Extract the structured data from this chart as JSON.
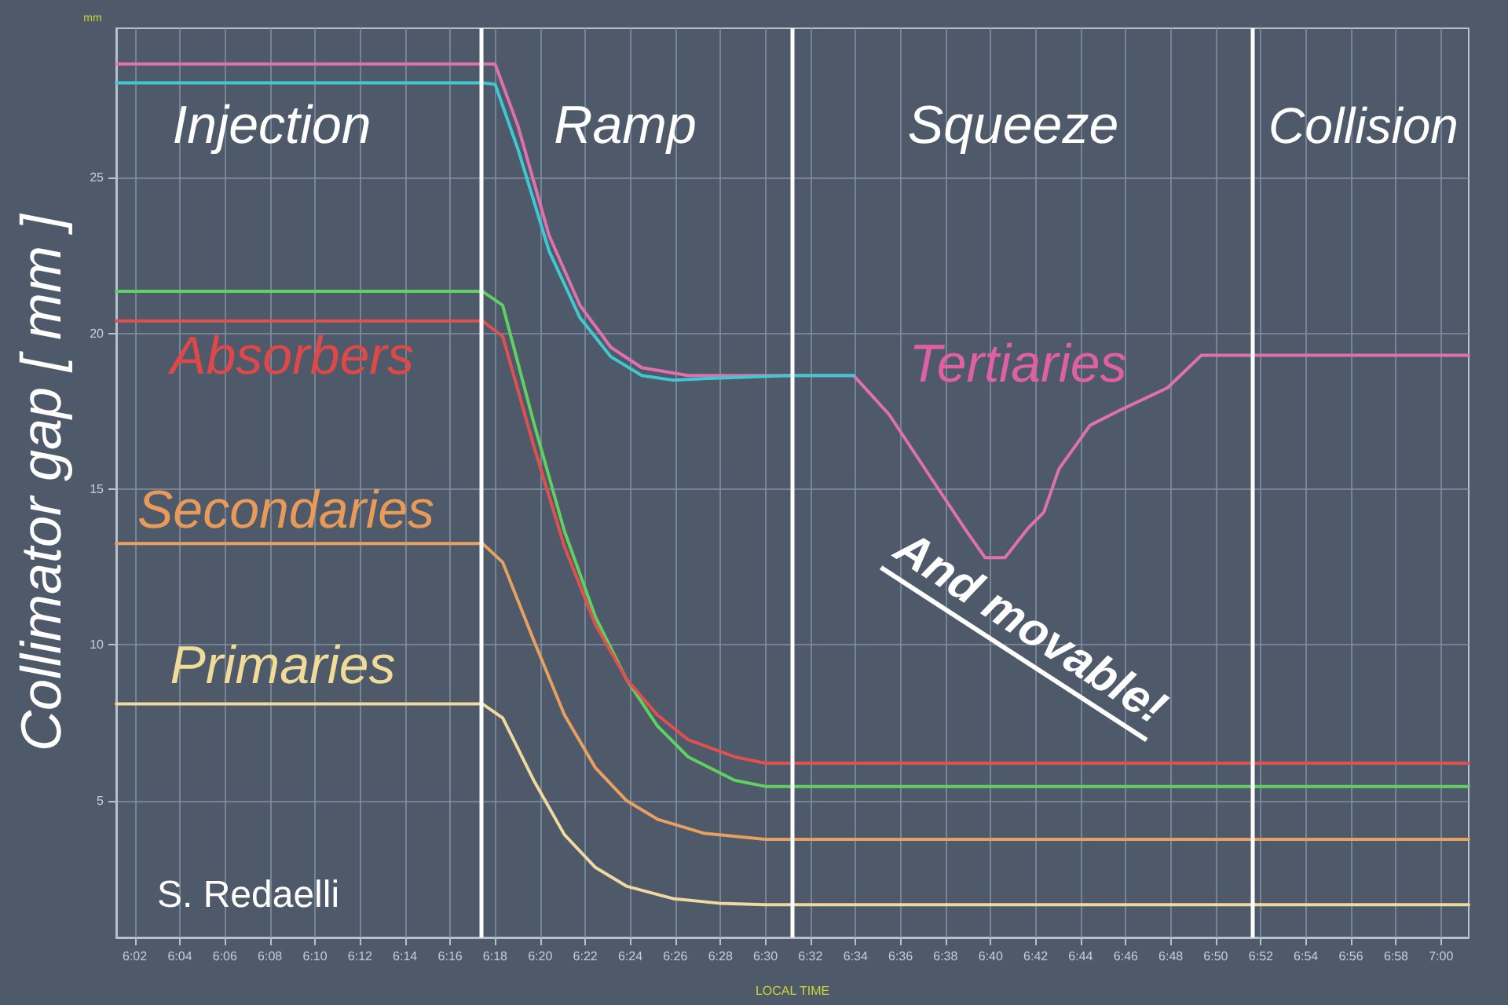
{
  "chart_data": {
    "type": "line",
    "ylabel": "Collimator gap [ mm ]",
    "xlabel": "LOCAL TIME",
    "xlim": [
      6.0196,
      7.0205
    ],
    "ylim": [
      0.6,
      29.8
    ],
    "yticks": [
      5,
      10,
      15,
      20,
      25
    ],
    "xticks": [
      {
        "value": 6.0333,
        "label": "6:02"
      },
      {
        "value": 6.0667,
        "label": "6:04"
      },
      {
        "value": 6.1,
        "label": "6:06"
      },
      {
        "value": 6.1333,
        "label": "6:08"
      },
      {
        "value": 6.1667,
        "label": "6:10"
      },
      {
        "value": 6.2,
        "label": "6:12"
      },
      {
        "value": 6.2333,
        "label": "6:14"
      },
      {
        "value": 6.2667,
        "label": "6:16"
      },
      {
        "value": 6.3,
        "label": "6:18"
      },
      {
        "value": 6.3333,
        "label": "6:20"
      },
      {
        "value": 6.3667,
        "label": "6:22"
      },
      {
        "value": 6.4,
        "label": "6:24"
      },
      {
        "value": 6.4333,
        "label": "6:26"
      },
      {
        "value": 6.4667,
        "label": "6:28"
      },
      {
        "value": 6.5,
        "label": "6:30"
      },
      {
        "value": 6.5333,
        "label": "6:32"
      },
      {
        "value": 6.5667,
        "label": "6:34"
      },
      {
        "value": 6.6,
        "label": "6:36"
      },
      {
        "value": 6.6333,
        "label": "6:38"
      },
      {
        "value": 6.6667,
        "label": "6:40"
      },
      {
        "value": 6.7,
        "label": "6:42"
      },
      {
        "value": 6.7333,
        "label": "6:44"
      },
      {
        "value": 6.7667,
        "label": "6:46"
      },
      {
        "value": 6.8,
        "label": "6:48"
      },
      {
        "value": 6.8333,
        "label": "6:50"
      },
      {
        "value": 6.8667,
        "label": "6:52"
      },
      {
        "value": 6.9,
        "label": "6:54"
      },
      {
        "value": 6.9333,
        "label": "6:56"
      },
      {
        "value": 6.9667,
        "label": "6:58"
      },
      {
        "value": 7.0,
        "label": "7:00"
      }
    ],
    "grid": true,
    "legend": false,
    "marker": "none",
    "line_style": "solid",
    "series": [
      {
        "name": "Tertiaries",
        "color": "#e070b0",
        "x": [
          6.0196,
          6.2907,
          6.3,
          6.317,
          6.3399,
          6.3628,
          6.3857,
          6.4085,
          6.4428,
          6.5195,
          6.5652,
          6.5915,
          6.6258,
          6.6488,
          6.6625,
          6.6773,
          6.6945,
          6.706,
          6.7173,
          6.7403,
          6.7632,
          6.7975,
          6.8227,
          6.8432,
          7.0205
        ],
        "values": [
          28.65,
          28.65,
          28.65,
          26.65,
          23.15,
          20.9,
          19.55,
          18.9,
          18.65,
          18.65,
          18.65,
          17.4,
          15.15,
          13.65,
          12.8,
          12.8,
          13.75,
          14.25,
          15.65,
          17.05,
          17.55,
          18.25,
          19.3,
          19.3,
          19.3
        ]
      },
      {
        "color": "#40c8d0",
        "x": [
          6.0196,
          6.2907,
          6.3,
          6.317,
          6.3399,
          6.3628,
          6.3857,
          6.4085,
          6.4314,
          6.4543,
          6.5195,
          6.5652
        ],
        "values": [
          28.05,
          28.05,
          28.0,
          25.9,
          22.65,
          20.5,
          19.25,
          18.65,
          18.5,
          18.55,
          18.65,
          18.65
        ]
      },
      {
        "color": "#60d060",
        "x": [
          6.0196,
          6.2907,
          6.3056,
          6.3285,
          6.3513,
          6.3742,
          6.3971,
          6.42,
          6.4428,
          6.4772,
          6.5,
          7.0205
        ],
        "values": [
          21.35,
          21.35,
          20.9,
          17.15,
          13.65,
          10.9,
          8.9,
          7.4,
          6.4,
          5.65,
          5.45,
          5.45
        ]
      },
      {
        "name": "Absorbers",
        "color": "#e05050",
        "x": [
          6.0196,
          6.2907,
          6.3056,
          6.3285,
          6.3513,
          6.3742,
          6.3971,
          6.42,
          6.4428,
          6.4772,
          6.5,
          7.0205
        ],
        "values": [
          20.4,
          20.4,
          19.9,
          16.4,
          13.15,
          10.65,
          8.9,
          7.75,
          6.95,
          6.4,
          6.2,
          6.2
        ]
      },
      {
        "name": "Secondaries",
        "color": "#e8a060",
        "x": [
          6.0196,
          6.2907,
          6.3056,
          6.3285,
          6.3513,
          6.3742,
          6.3971,
          6.42,
          6.4543,
          6.5,
          7.0205
        ],
        "values": [
          13.25,
          13.25,
          12.65,
          10.15,
          7.75,
          6.05,
          5.0,
          4.4,
          3.95,
          3.75,
          3.75
        ]
      },
      {
        "name": "Primaries",
        "color": "#f0d8a0",
        "x": [
          6.0196,
          6.2907,
          6.3056,
          6.3285,
          6.3513,
          6.3742,
          6.3971,
          6.4314,
          6.4657,
          6.5,
          7.0205
        ],
        "values": [
          8.1,
          8.1,
          7.65,
          5.65,
          3.9,
          2.85,
          2.25,
          1.85,
          1.7,
          1.65,
          1.65
        ]
      }
    ],
    "ref_lines": [
      {
        "axis": "x",
        "value": 6.2907,
        "color": "#ffffff"
      },
      {
        "axis": "x",
        "value": 6.5195,
        "color": "#ffffff"
      },
      {
        "axis": "x",
        "value": 6.8582,
        "color": "#ffffff"
      }
    ],
    "annotations": [
      "Injection",
      "Ramp",
      "Squeeze",
      "Collision",
      "mm",
      "S. Redaelli",
      "And movable!"
    ]
  }
}
